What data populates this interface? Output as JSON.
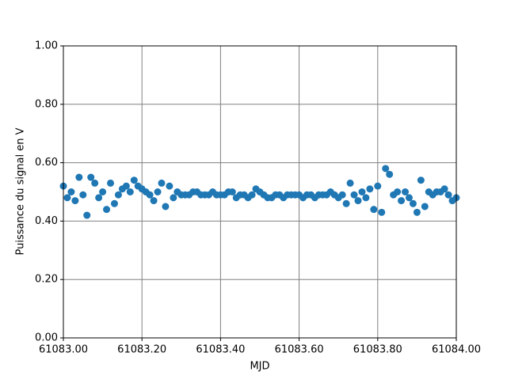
{
  "chart_data": {
    "type": "scatter",
    "x_label": "MJD",
    "y_label": "Puissance du signal en V",
    "color": "#1f77b4",
    "grid": true,
    "xlim": [
      61083.0,
      61084.0
    ],
    "ylim": [
      0,
      1
    ],
    "xticks": [
      {
        "value": 61083.0,
        "label": "61083.00"
      },
      {
        "value": 61083.2,
        "label": "61083.20"
      },
      {
        "value": 61083.4,
        "label": "61083.40"
      },
      {
        "value": 61083.6,
        "label": "61083.60"
      },
      {
        "value": 61083.8,
        "label": "61083.80"
      },
      {
        "value": 61084.0,
        "label": "61084.00"
      }
    ],
    "yticks": [
      {
        "value": 0,
        "label": "0.00"
      },
      {
        "value": 0.2,
        "label": "0.20"
      },
      {
        "value": 0.4,
        "label": "0.40"
      },
      {
        "value": 0.6,
        "label": "0.60"
      },
      {
        "value": 0.8,
        "label": "0.80"
      },
      {
        "value": 1,
        "label": "1.00"
      }
    ],
    "x": [
      61083.0,
      61083.01,
      61083.02,
      61083.03,
      61083.04,
      61083.05,
      61083.06,
      61083.07,
      61083.08,
      61083.09,
      61083.1,
      61083.11,
      61083.12,
      61083.13,
      61083.14,
      61083.15,
      61083.16,
      61083.17,
      61083.18,
      61083.19,
      61083.2,
      61083.21,
      61083.22,
      61083.23,
      61083.24,
      61083.25,
      61083.26,
      61083.27,
      61083.28,
      61083.29,
      61083.3,
      61083.31,
      61083.32,
      61083.33,
      61083.34,
      61083.35,
      61083.36,
      61083.37,
      61083.38,
      61083.39,
      61083.4,
      61083.41,
      61083.42,
      61083.43,
      61083.44,
      61083.45,
      61083.46,
      61083.47,
      61083.48,
      61083.49,
      61083.5,
      61083.51,
      61083.52,
      61083.53,
      61083.54,
      61083.55,
      61083.56,
      61083.57,
      61083.58,
      61083.59,
      61083.6,
      61083.61,
      61083.62,
      61083.63,
      61083.64,
      61083.65,
      61083.66,
      61083.67,
      61083.68,
      61083.69,
      61083.7,
      61083.71,
      61083.72,
      61083.73,
      61083.74,
      61083.75,
      61083.76,
      61083.77,
      61083.78,
      61083.79,
      61083.8,
      61083.81,
      61083.82,
      61083.83,
      61083.84,
      61083.85,
      61083.86,
      61083.87,
      61083.88,
      61083.89,
      61083.9,
      61083.91,
      61083.92,
      61083.93,
      61083.94,
      61083.95,
      61083.96,
      61083.97,
      61083.98,
      61083.99,
      61084.0
    ],
    "values": [
      0.52,
      0.48,
      0.5,
      0.47,
      0.55,
      0.49,
      0.42,
      0.55,
      0.53,
      0.48,
      0.5,
      0.44,
      0.53,
      0.46,
      0.49,
      0.51,
      0.52,
      0.5,
      0.54,
      0.52,
      0.51,
      0.5,
      0.49,
      0.47,
      0.5,
      0.53,
      0.45,
      0.52,
      0.48,
      0.5,
      0.49,
      0.49,
      0.49,
      0.5,
      0.5,
      0.49,
      0.49,
      0.49,
      0.5,
      0.49,
      0.49,
      0.49,
      0.5,
      0.5,
      0.48,
      0.49,
      0.49,
      0.48,
      0.49,
      0.51,
      0.5,
      0.49,
      0.48,
      0.48,
      0.49,
      0.49,
      0.48,
      0.49,
      0.49,
      0.49,
      0.49,
      0.48,
      0.49,
      0.49,
      0.48,
      0.49,
      0.49,
      0.49,
      0.5,
      0.49,
      0.48,
      0.49,
      0.46,
      0.53,
      0.49,
      0.47,
      0.5,
      0.48,
      0.51,
      0.44,
      0.52,
      0.43,
      0.58,
      0.56,
      0.49,
      0.5,
      0.47,
      0.5,
      0.48,
      0.46,
      0.43,
      0.54,
      0.45,
      0.5,
      0.49,
      0.5,
      0.5,
      0.51,
      0.49,
      0.47,
      0.48
    ]
  }
}
